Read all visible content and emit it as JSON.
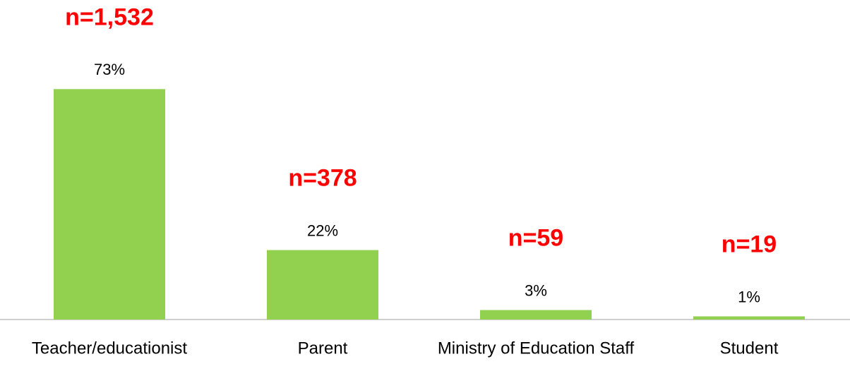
{
  "chart_data": {
    "type": "bar",
    "categories": [
      "Teacher/educationist",
      "Parent",
      "Ministry of Education Staff",
      "Student"
    ],
    "values": [
      73,
      22,
      3,
      1
    ],
    "value_labels": [
      "73%",
      "22%",
      "3%",
      "1%"
    ],
    "annotations": [
      "n=1,532",
      "n=378",
      "n=59",
      "n=19"
    ],
    "color": "#92d050",
    "ylim": [
      0,
      80
    ]
  }
}
